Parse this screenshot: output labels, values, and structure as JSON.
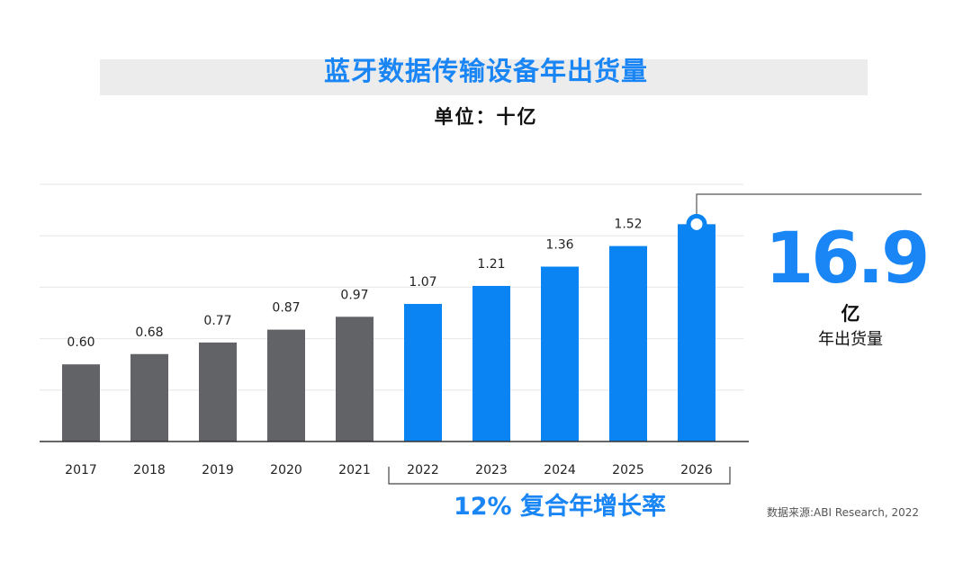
{
  "title": "蓝牙数据传输设备年出货量",
  "subtitle": "单位：十亿",
  "highlight": {
    "value": "16.9",
    "unit": "亿",
    "label": "年出货量"
  },
  "cagr_label": "12% 复合年增长率",
  "source": "数据来源:ABI Research, 2022",
  "colors": {
    "historical": "#626366",
    "forecast": "#0a84f2",
    "accent": "#1a85f5"
  },
  "chart_data": {
    "type": "bar",
    "categories": [
      "2017",
      "2018",
      "2019",
      "2020",
      "2021",
      "2022",
      "2023",
      "2024",
      "2025",
      "2026"
    ],
    "values": [
      0.6,
      0.68,
      0.77,
      0.87,
      0.97,
      1.07,
      1.21,
      1.36,
      1.52,
      1.69
    ],
    "value_labels": [
      "0.60",
      "0.68",
      "0.77",
      "0.87",
      "0.97",
      "1.07",
      "1.21",
      "1.36",
      "1.52",
      ""
    ],
    "forecast_from": "2022",
    "ylim": [
      0,
      2.0
    ],
    "grid": true,
    "xlabel": "",
    "ylabel": ""
  }
}
